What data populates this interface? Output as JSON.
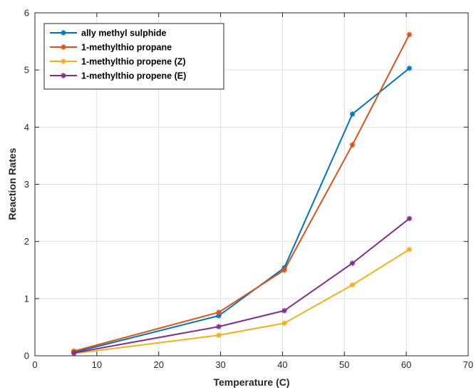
{
  "chart_data": {
    "type": "line",
    "title": "",
    "xlabel": "Temperature (C)",
    "ylabel": "Reaction Rates",
    "xlim": [
      0,
      70
    ],
    "ylim": [
      0,
      6
    ],
    "xticks": [
      0,
      10,
      20,
      30,
      40,
      50,
      60,
      70
    ],
    "yticks": [
      0,
      1,
      2,
      3,
      4,
      5,
      6
    ],
    "grid": true,
    "legend_position": "top-left",
    "x": [
      6.3,
      29.7,
      40.3,
      51.3,
      60.5
    ],
    "series": [
      {
        "name": "ally methyl sulphide",
        "color": "#0072BD",
        "marker": "asterisk",
        "values": [
          0.06,
          0.7,
          1.54,
          4.23,
          5.03
        ]
      },
      {
        "name": "1-methylthio propane",
        "color": "#D95319",
        "marker": "asterisk",
        "values": [
          0.08,
          0.76,
          1.5,
          3.69,
          5.62
        ]
      },
      {
        "name": "1-methylthio propene (Z)",
        "color": "#EDB120",
        "marker": "asterisk",
        "values": [
          0.04,
          0.36,
          0.57,
          1.24,
          1.86
        ]
      },
      {
        "name": "1-methylthio propene (E)",
        "color": "#7E2F8E",
        "marker": "asterisk",
        "values": [
          0.05,
          0.51,
          0.79,
          1.62,
          2.4
        ]
      }
    ]
  }
}
